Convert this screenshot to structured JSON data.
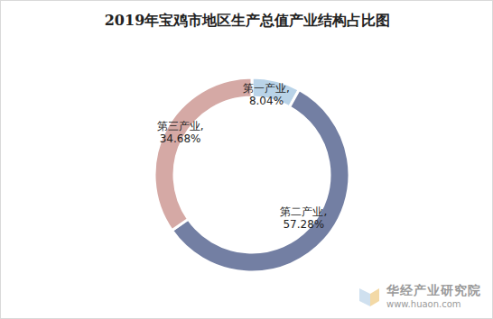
{
  "chart_data": {
    "type": "pie",
    "title": "2019年宝鸡市地区生产总值产业结构占比图",
    "categories": [
      "第一产业",
      "第二产业",
      "第三产业"
    ],
    "values": [
      8.04,
      57.28,
      34.68
    ],
    "value_labels": [
      "第一产业,\n8.04%",
      "第二产业,\n57.28%",
      "第三产业,\n34.68%"
    ],
    "colors": [
      "#b9d3e8",
      "#737fa3",
      "#d5a9a5"
    ],
    "data_labels": true,
    "annotations": [
      "华经产业研究院",
      "www.huaon.com"
    ]
  }
}
